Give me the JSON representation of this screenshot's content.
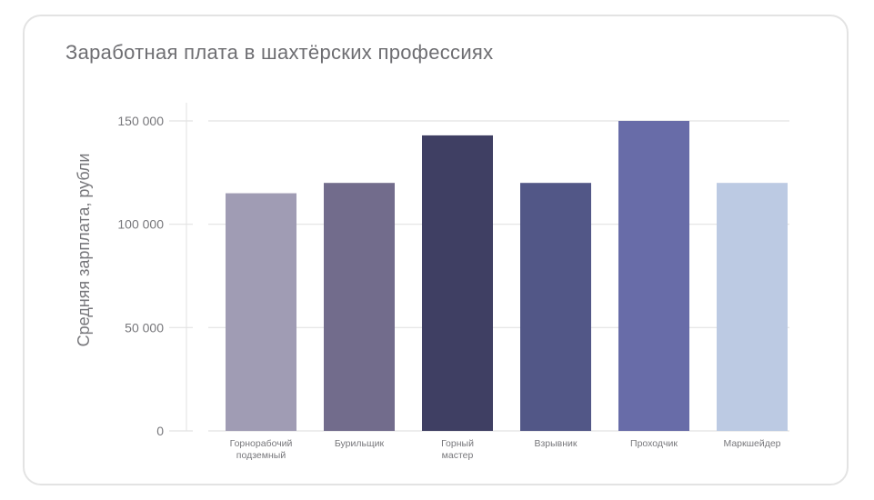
{
  "chart_data": {
    "type": "bar",
    "title": "Заработная плата в шахтёрских профессиях",
    "xlabel": "",
    "ylabel": "Средняя зарплата, рубли",
    "categories": [
      [
        "Горнорабочий",
        "подземный"
      ],
      [
        "Бурильщик"
      ],
      [
        "Горный",
        "мастер"
      ],
      [
        "Взрывник"
      ],
      [
        "Проходчик"
      ],
      [
        "Маркшейдер"
      ]
    ],
    "values": [
      115000,
      120000,
      143000,
      120000,
      150000,
      120000
    ],
    "colors": [
      "#a09cb4",
      "#726c8c",
      "#3f3f63",
      "#525787",
      "#686ca8",
      "#bccae3"
    ],
    "ylim": [
      0,
      150000
    ],
    "yticks": [
      0,
      50000,
      100000,
      150000
    ],
    "ytick_labels": [
      "0",
      "50 000",
      "100 000",
      "150 000"
    ],
    "grid": true,
    "legend": "none"
  }
}
